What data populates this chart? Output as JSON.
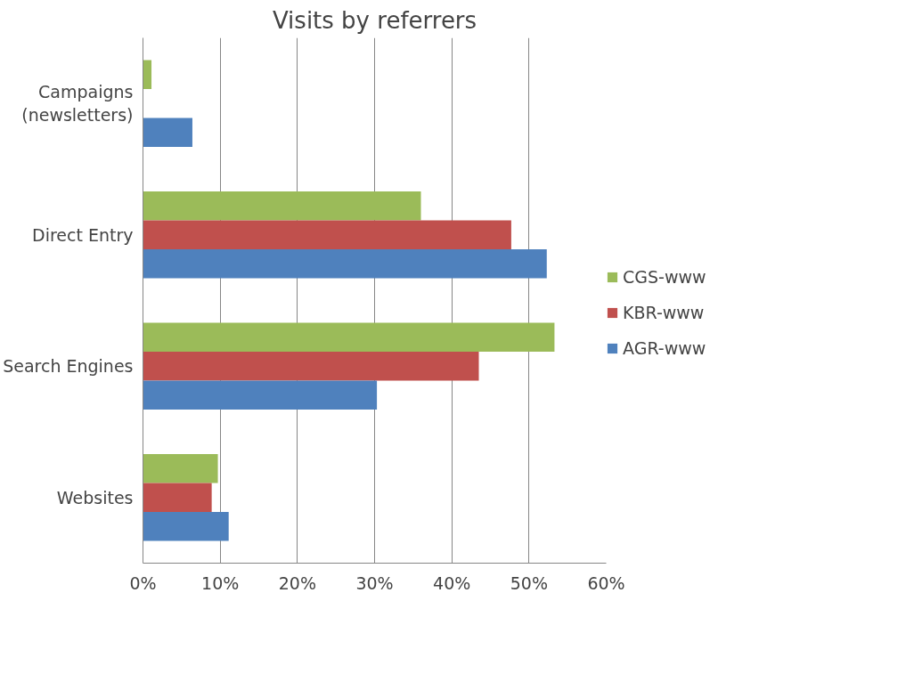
{
  "chart_data": {
    "type": "bar",
    "orientation": "horizontal",
    "title": "Visits by referrers",
    "categories": [
      "Campaigns (newsletters)",
      "Direct Entry",
      "Search Engines",
      "Websites"
    ],
    "series": [
      {
        "name": "CGS-www",
        "color": "#9bbb59",
        "values": [
          1.1,
          36.0,
          53.3,
          9.7
        ]
      },
      {
        "name": "KBR-www",
        "color": "#c0504d",
        "values": [
          0,
          47.7,
          43.5,
          8.9
        ]
      },
      {
        "name": "AGR-www",
        "color": "#4f81bd",
        "values": [
          6.4,
          52.3,
          30.3,
          11.1
        ]
      }
    ],
    "xlim": [
      0,
      60
    ],
    "xticks": [
      {
        "value": 0,
        "label": "0%"
      },
      {
        "value": 10,
        "label": "10%"
      },
      {
        "value": 20,
        "label": "20%"
      },
      {
        "value": 30,
        "label": "30%"
      },
      {
        "value": 40,
        "label": "40%"
      },
      {
        "value": 50,
        "label": "50%"
      },
      {
        "value": 60,
        "label": "60%"
      }
    ],
    "grid": "x",
    "legend": "right"
  }
}
